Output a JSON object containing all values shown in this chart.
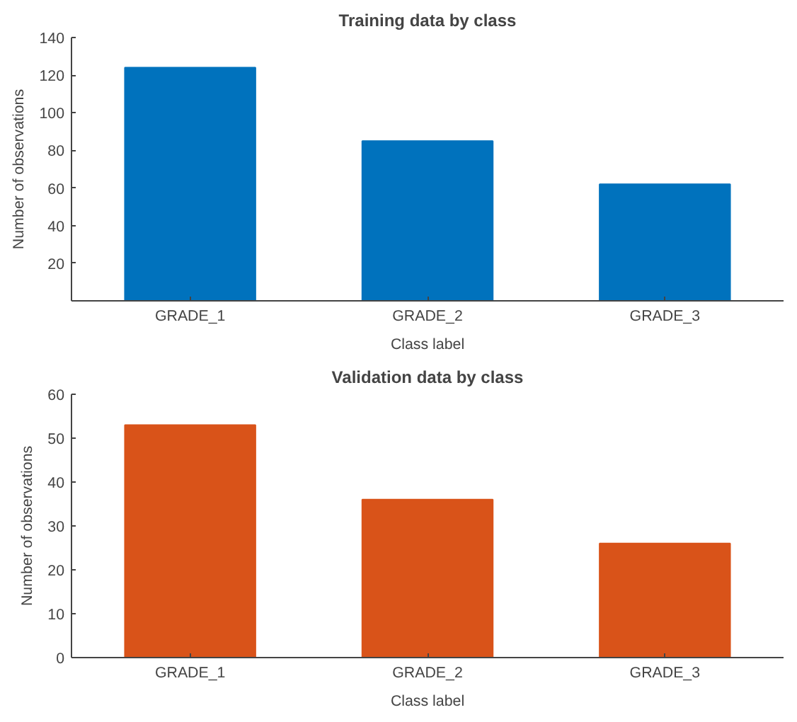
{
  "chart_data": [
    {
      "type": "bar",
      "title": "Training data by class",
      "xlabel": "Class label",
      "ylabel": "Number of observations",
      "categories": [
        "GRADE_1",
        "GRADE_2",
        "GRADE_3"
      ],
      "values": [
        124,
        85,
        62
      ],
      "color": "#0072bd",
      "ylim": [
        0,
        140
      ],
      "yticks": [
        20,
        40,
        60,
        80,
        100,
        120,
        140
      ],
      "grid": false
    },
    {
      "type": "bar",
      "title": "Validation data by class",
      "xlabel": "Class label",
      "ylabel": "Number of observations",
      "categories": [
        "GRADE_1",
        "GRADE_2",
        "GRADE_3"
      ],
      "values": [
        53,
        36,
        26
      ],
      "color": "#d95319",
      "ylim": [
        0,
        60
      ],
      "yticks": [
        0,
        10,
        20,
        30,
        40,
        50,
        60
      ],
      "grid": false
    }
  ]
}
